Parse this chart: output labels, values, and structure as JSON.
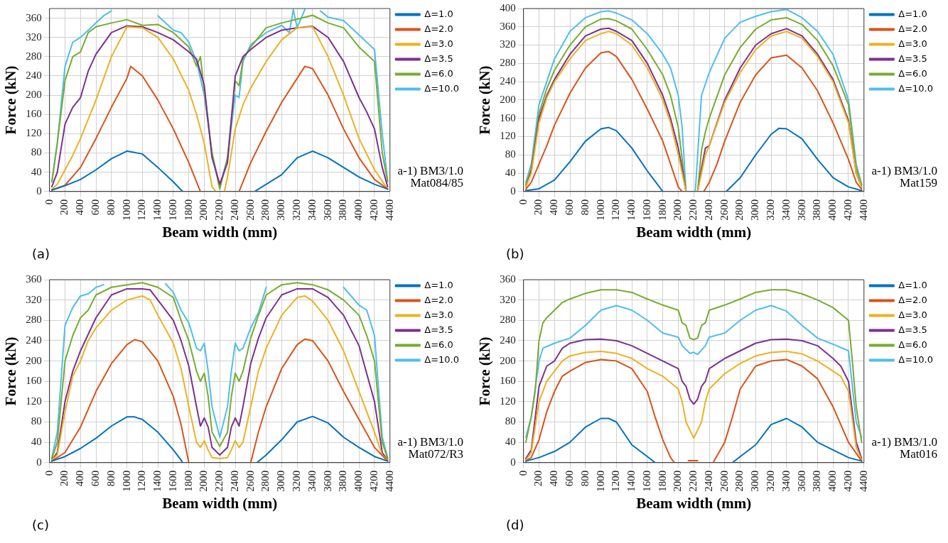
{
  "chart_data": [
    {
      "type": "line",
      "xlabel": "Beam width (mm)",
      "ylabel": "Force (kN)",
      "xlim": [
        0,
        4400
      ],
      "xticks": [
        0,
        200,
        400,
        600,
        800,
        1000,
        1200,
        1400,
        1600,
        1800,
        2000,
        2200,
        2400,
        2600,
        2800,
        3000,
        3200,
        3400,
        3600,
        3800,
        4000,
        4200,
        4400
      ],
      "ylim": [
        0,
        380
      ],
      "yticks": [
        0,
        40,
        80,
        120,
        160,
        200,
        240,
        280,
        320,
        360
      ],
      "grid": true,
      "legend": "top right",
      "marker": "none",
      "line_style": "solid",
      "annotations": [
        "(a)",
        "a-1) BM3/1.0",
        "Mat084/85"
      ],
      "series": [
        {
          "name": "Δ=1.0",
          "color": "#0072bd",
          "x": [
            30,
            200,
            400,
            600,
            800,
            1000,
            1200,
            1400,
            1600,
            1720,
            1800,
            2650,
            2800,
            3000,
            3200,
            3400,
            3600,
            3800,
            4000,
            4200,
            4370
          ],
          "values": [
            3,
            12,
            25,
            45,
            68,
            84,
            78,
            50,
            20,
            0,
            null,
            0,
            15,
            35,
            70,
            84,
            70,
            50,
            30,
            15,
            5
          ]
        },
        {
          "name": "Δ=2.0",
          "color": "#d95319",
          "x": [
            30,
            200,
            400,
            600,
            800,
            1000,
            1050,
            1200,
            1400,
            1600,
            1800,
            1950,
            2200,
            2450,
            2600,
            2800,
            3000,
            3200,
            3300,
            3400,
            3600,
            3800,
            4000,
            4200,
            4370
          ],
          "values": [
            3,
            13,
            50,
            110,
            175,
            235,
            260,
            240,
            190,
            130,
            60,
            0,
            null,
            0,
            60,
            125,
            185,
            235,
            260,
            255,
            200,
            130,
            70,
            25,
            5
          ]
        },
        {
          "name": "Δ=3.0",
          "color": "#edb120",
          "x": [
            30,
            100,
            200,
            300,
            400,
            600,
            800,
            1000,
            1200,
            1400,
            1600,
            1800,
            1900,
            2000,
            2100,
            2150,
            2200,
            2260,
            2300,
            2400,
            2500,
            2600,
            2800,
            3000,
            3200,
            3400,
            3600,
            3800,
            4000,
            4200,
            4370
          ],
          "values": [
            5,
            15,
            45,
            75,
            110,
            190,
            280,
            342,
            340,
            320,
            275,
            210,
            160,
            100,
            10,
            0,
            null,
            0,
            30,
            130,
            180,
            215,
            270,
            315,
            340,
            342,
            280,
            200,
            110,
            45,
            5
          ]
        },
        {
          "name": "Δ=3.5",
          "color": "#7e2f8e",
          "x": [
            30,
            100,
            200,
            300,
            400,
            500,
            600,
            800,
            1000,
            1200,
            1400,
            1600,
            1800,
            1900,
            2000,
            2100,
            2200,
            2300,
            2400,
            2500,
            2600,
            2800,
            3000,
            3200,
            3400,
            3600,
            3800,
            4000,
            4100,
            4200,
            4300,
            4370
          ],
          "values": [
            10,
            40,
            140,
            175,
            195,
            250,
            285,
            330,
            344,
            342,
            330,
            315,
            290,
            275,
            220,
            70,
            15,
            60,
            240,
            280,
            295,
            320,
            335,
            340,
            343,
            320,
            270,
            195,
            165,
            130,
            50,
            10
          ]
        },
        {
          "name": "Δ=6.0",
          "color": "#77ac30",
          "x": [
            30,
            100,
            200,
            300,
            400,
            500,
            600,
            800,
            1000,
            1200,
            1400,
            1600,
            1800,
            1900,
            1950,
            2000,
            2100,
            2200,
            2300,
            2400,
            2450,
            2500,
            2600,
            2800,
            3000,
            3200,
            3400,
            3600,
            3800,
            4000,
            4100,
            4200,
            4300,
            4370
          ],
          "values": [
            20,
            100,
            230,
            280,
            290,
            330,
            342,
            350,
            357,
            345,
            347,
            330,
            300,
            260,
            280,
            210,
            80,
            5,
            70,
            230,
            220,
            275,
            300,
            340,
            350,
            358,
            366,
            350,
            340,
            300,
            285,
            270,
            80,
            20
          ]
        },
        {
          "name": "Δ=10.0",
          "color": "#4dbeee",
          "x": [
            30,
            100,
            200,
            300,
            400,
            500,
            600,
            700,
            800,
            850,
            1000,
            1300,
            1400,
            1500,
            1600,
            1700,
            1800,
            1900,
            2000,
            2100,
            2200,
            2300,
            2400,
            2450,
            2500,
            2600,
            2800,
            3000,
            3100,
            3150,
            3200,
            3300,
            3400,
            3500,
            3600,
            3800,
            4000,
            4200,
            4300,
            4370
          ],
          "values": [
            20,
            100,
            260,
            310,
            320,
            335,
            350,
            365,
            375,
            null,
            null,
            null,
            365,
            350,
            335,
            330,
            310,
            270,
            200,
            80,
            10,
            70,
            200,
            195,
            270,
            305,
            330,
            345,
            330,
            378,
            340,
            378,
            null,
            375,
            362,
            355,
            325,
            295,
            120,
            22
          ]
        }
      ]
    },
    {
      "type": "line",
      "xlabel": "Beam width (mm)",
      "ylabel": "Force (kN)",
      "xlim": [
        0,
        4400
      ],
      "xticks": [
        0,
        200,
        400,
        600,
        800,
        1000,
        1200,
        1400,
        1600,
        1800,
        2000,
        2200,
        2400,
        2600,
        2800,
        3000,
        3200,
        3400,
        3600,
        3800,
        4000,
        4200,
        4400
      ],
      "ylim": [
        0,
        400
      ],
      "yticks": [
        0,
        40,
        80,
        120,
        160,
        200,
        240,
        280,
        320,
        360,
        400
      ],
      "grid": true,
      "legend": "top right",
      "marker": "none",
      "line_style": "solid",
      "annotations": [
        "(b)",
        "a-1) BM3/1.0",
        "Mat159"
      ],
      "series": [
        {
          "name": "Δ=1.0",
          "color": "#0072bd",
          "x": [
            30,
            200,
            400,
            600,
            800,
            1000,
            1100,
            1200,
            1400,
            1600,
            1800,
            2200,
            2620,
            2800,
            3000,
            3200,
            3300,
            3400,
            3600,
            3800,
            4000,
            4200,
            4370
          ],
          "values": [
            2,
            6,
            25,
            65,
            110,
            137,
            140,
            133,
            95,
            45,
            0,
            null,
            0,
            30,
            80,
            125,
            138,
            137,
            115,
            70,
            30,
            10,
            2
          ]
        },
        {
          "name": "Δ=2.0",
          "color": "#d95319",
          "x": [
            30,
            100,
            200,
            300,
            400,
            600,
            800,
            1000,
            1100,
            1200,
            1400,
            1600,
            1800,
            1900,
            2000,
            2050,
            2200,
            2330,
            2400,
            2500,
            2600,
            2800,
            3000,
            3200,
            3400,
            3600,
            3800,
            4000,
            4200,
            4300,
            4370
          ],
          "values": [
            5,
            20,
            60,
            100,
            145,
            215,
            270,
            303,
            306,
            295,
            245,
            180,
            110,
            60,
            10,
            0,
            null,
            0,
            20,
            60,
            110,
            195,
            255,
            292,
            298,
            270,
            220,
            150,
            70,
            20,
            5
          ]
        },
        {
          "name": "Δ=3.0",
          "color": "#edb120",
          "x": [
            30,
            100,
            200,
            300,
            400,
            600,
            800,
            1000,
            1100,
            1200,
            1400,
            1600,
            1800,
            1900,
            2000,
            2050,
            2100,
            2180,
            2250,
            2300,
            2350,
            2400,
            2600,
            2800,
            3000,
            3200,
            3400,
            3600,
            3800,
            4000,
            4200,
            4300,
            4370
          ],
          "values": [
            10,
            40,
            150,
            205,
            240,
            290,
            330,
            345,
            350,
            345,
            320,
            270,
            200,
            150,
            80,
            40,
            0,
            null,
            0,
            40,
            80,
            100,
            195,
            260,
            310,
            340,
            350,
            335,
            295,
            240,
            150,
            40,
            10
          ]
        },
        {
          "name": "Δ=3.5",
          "color": "#7e2f8e",
          "x": [
            30,
            100,
            200,
            300,
            400,
            600,
            800,
            1000,
            1100,
            1200,
            1400,
            1600,
            1800,
            1900,
            2000,
            2050,
            2100,
            2180,
            2250,
            2300,
            2350,
            2400,
            2600,
            2800,
            3000,
            3200,
            3400,
            3600,
            3800,
            4000,
            4200,
            4300,
            4370
          ],
          "values": [
            10,
            45,
            160,
            210,
            245,
            300,
            340,
            355,
            357,
            350,
            330,
            280,
            210,
            160,
            95,
            50,
            0,
            null,
            0,
            50,
            95,
            100,
            200,
            270,
            320,
            345,
            356,
            340,
            300,
            245,
            155,
            40,
            10
          ]
        },
        {
          "name": "Δ=6.0",
          "color": "#77ac30",
          "x": [
            30,
            100,
            200,
            300,
            400,
            600,
            800,
            1000,
            1100,
            1200,
            1400,
            1600,
            1800,
            1900,
            2000,
            2050,
            2100,
            2180,
            2250,
            2300,
            2350,
            2400,
            2600,
            2800,
            3000,
            3200,
            3400,
            3600,
            3800,
            4000,
            4200,
            4300,
            4370
          ],
          "values": [
            15,
            50,
            170,
            225,
            265,
            320,
            360,
            377,
            378,
            373,
            355,
            310,
            255,
            210,
            140,
            70,
            0,
            null,
            0,
            90,
            130,
            160,
            255,
            315,
            355,
            375,
            380,
            365,
            330,
            275,
            190,
            50,
            15
          ]
        },
        {
          "name": "Δ=10.0",
          "color": "#4dbeee",
          "x": [
            30,
            100,
            200,
            300,
            400,
            600,
            800,
            1000,
            1100,
            1200,
            1400,
            1600,
            1800,
            1900,
            2000,
            2050,
            2100,
            2160,
            2220,
            2300,
            2400,
            2600,
            2800,
            3000,
            3200,
            3400,
            3600,
            3800,
            4000,
            4200,
            4300,
            4370
          ],
          "values": [
            20,
            60,
            190,
            240,
            290,
            350,
            380,
            393,
            395,
            390,
            375,
            345,
            300,
            270,
            210,
            140,
            0,
            null,
            0,
            210,
            260,
            335,
            370,
            383,
            393,
            398,
            380,
            350,
            300,
            200,
            60,
            15
          ]
        }
      ]
    },
    {
      "type": "line",
      "xlabel": "Beam width (mm)",
      "ylabel": "Force (kN)",
      "xlim": [
        0,
        4400
      ],
      "xticks": [
        0,
        200,
        400,
        600,
        800,
        1000,
        1200,
        1400,
        1600,
        1800,
        2000,
        2200,
        2400,
        2600,
        2800,
        3000,
        3200,
        3400,
        3600,
        3800,
        4000,
        4200,
        4400
      ],
      "ylim": [
        0,
        360
      ],
      "yticks": [
        0,
        40,
        80,
        120,
        160,
        200,
        240,
        280,
        320,
        360
      ],
      "grid": true,
      "legend": "top right",
      "marker": "none",
      "line_style": "solid",
      "annotations": [
        "(c)",
        "a-1) BM3/1.0",
        "Mat072/R3"
      ],
      "series": [
        {
          "name": "Δ=1.0",
          "color": "#0072bd",
          "x": [
            30,
            200,
            400,
            600,
            800,
            1000,
            1100,
            1200,
            1400,
            1600,
            1700,
            1720,
            2200,
            2680,
            2800,
            3000,
            3200,
            3400,
            3600,
            3800,
            4000,
            4200,
            4370
          ],
          "values": [
            3,
            12,
            28,
            48,
            72,
            90,
            90,
            85,
            60,
            25,
            5,
            0,
            null,
            0,
            15,
            45,
            80,
            91,
            78,
            50,
            30,
            12,
            3
          ]
        },
        {
          "name": "Δ=2.0",
          "color": "#d95319",
          "x": [
            30,
            200,
            400,
            600,
            800,
            1000,
            1100,
            1200,
            1400,
            1600,
            1700,
            1800,
            2200,
            2600,
            2700,
            2800,
            3000,
            3200,
            3300,
            3400,
            3600,
            3800,
            4000,
            4200,
            4370
          ],
          "values": [
            3,
            20,
            70,
            140,
            195,
            232,
            242,
            238,
            200,
            130,
            75,
            0,
            null,
            0,
            60,
            110,
            185,
            232,
            243,
            240,
            200,
            140,
            85,
            30,
            3
          ]
        },
        {
          "name": "Δ=3.0",
          "color": "#edb120",
          "x": [
            30,
            100,
            200,
            300,
            400,
            500,
            600,
            800,
            1000,
            1200,
            1300,
            1400,
            1600,
            1700,
            1800,
            1900,
            1950,
            2000,
            2050,
            2100,
            2200,
            2300,
            2350,
            2400,
            2450,
            2500,
            2600,
            2700,
            2800,
            3000,
            3200,
            3300,
            3400,
            3600,
            3800,
            4000,
            4200,
            4300,
            4370
          ],
          "values": [
            5,
            15,
            100,
            170,
            200,
            240,
            265,
            300,
            320,
            328,
            320,
            290,
            235,
            185,
            110,
            40,
            30,
            43,
            25,
            10,
            8,
            10,
            25,
            43,
            30,
            40,
            110,
            180,
            225,
            290,
            325,
            328,
            318,
            280,
            220,
            140,
            60,
            15,
            5
          ]
        },
        {
          "name": "Δ=3.5",
          "color": "#7e2f8e",
          "x": [
            30,
            100,
            200,
            300,
            400,
            600,
            800,
            1000,
            1200,
            1300,
            1400,
            1600,
            1700,
            1800,
            1900,
            1950,
            2000,
            2050,
            2100,
            2200,
            2300,
            2350,
            2400,
            2450,
            2500,
            2600,
            2700,
            2800,
            3000,
            3200,
            3400,
            3600,
            3800,
            4000,
            4200,
            4300,
            4370
          ],
          "values": [
            5,
            20,
            120,
            180,
            220,
            285,
            330,
            342,
            342,
            340,
            320,
            280,
            240,
            190,
            110,
            72,
            88,
            70,
            30,
            15,
            30,
            70,
            88,
            72,
            110,
            195,
            245,
            285,
            330,
            342,
            342,
            325,
            290,
            230,
            120,
            20,
            5
          ]
        },
        {
          "name": "Δ=6.0",
          "color": "#77ac30",
          "x": [
            30,
            100,
            200,
            300,
            400,
            500,
            600,
            800,
            1000,
            1200,
            1400,
            1600,
            1700,
            1800,
            1900,
            1950,
            2000,
            2050,
            2100,
            2200,
            2300,
            2350,
            2400,
            2450,
            2500,
            2600,
            2700,
            2800,
            3000,
            3200,
            3400,
            3600,
            3800,
            4000,
            4100,
            4200,
            4300,
            4370
          ],
          "values": [
            8,
            40,
            200,
            250,
            285,
            300,
            330,
            345,
            350,
            354,
            345,
            325,
            280,
            240,
            180,
            160,
            176,
            130,
            60,
            32,
            60,
            130,
            176,
            160,
            180,
            245,
            290,
            330,
            350,
            354,
            350,
            340,
            320,
            290,
            250,
            200,
            40,
            8
          ]
        },
        {
          "name": "Δ=10.0",
          "color": "#4dbeee",
          "x": [
            30,
            100,
            200,
            300,
            400,
            500,
            600,
            700,
            800,
            1100,
            1400,
            1500,
            1600,
            1700,
            1800,
            1900,
            1950,
            2000,
            2050,
            2100,
            2200,
            2300,
            2350,
            2400,
            2450,
            2500,
            2600,
            2700,
            2800,
            2900,
            3300,
            3700,
            3800,
            4000,
            4100,
            4200,
            4300,
            4370
          ],
          "values": [
            10,
            60,
            270,
            305,
            328,
            332,
            345,
            350,
            null,
            null,
            null,
            352,
            335,
            300,
            275,
            225,
            220,
            235,
            180,
            110,
            50,
            110,
            180,
            235,
            220,
            225,
            265,
            295,
            345,
            null,
            null,
            null,
            345,
            310,
            300,
            250,
            50,
            10
          ]
        }
      ]
    },
    {
      "type": "line",
      "xlabel": "Beam width (mm)",
      "ylabel": "Force (kN)",
      "xlim": [
        0,
        4400
      ],
      "xticks": [
        0,
        200,
        400,
        600,
        800,
        1000,
        1200,
        1400,
        1600,
        1800,
        2000,
        2200,
        2400,
        2600,
        2800,
        3000,
        3200,
        3400,
        3600,
        3800,
        4000,
        4200,
        4400
      ],
      "ylim": [
        0,
        360
      ],
      "yticks": [
        0,
        40,
        80,
        120,
        160,
        200,
        240,
        280,
        320,
        360
      ],
      "grid": true,
      "legend": "top right",
      "marker": "none",
      "line_style": "solid",
      "annotations": [
        "(d)",
        "a-1) BM3/1.0",
        "Mat016"
      ],
      "series": [
        {
          "name": "Δ=1.0",
          "color": "#0072bd",
          "x": [
            30,
            200,
            400,
            600,
            800,
            1000,
            1100,
            1200,
            1400,
            1600,
            1700,
            2200,
            2700,
            2800,
            3000,
            3200,
            3400,
            3600,
            3800,
            4000,
            4200,
            4370
          ],
          "values": [
            3,
            10,
            22,
            40,
            70,
            87,
            87,
            80,
            35,
            12,
            0,
            null,
            0,
            12,
            35,
            75,
            87,
            70,
            40,
            25,
            10,
            3
          ]
        },
        {
          "name": "Δ=2.0",
          "color": "#d95319",
          "x": [
            30,
            100,
            200,
            300,
            400,
            500,
            600,
            800,
            1000,
            1200,
            1400,
            1600,
            1700,
            1800,
            1900,
            1950,
            2050,
            2130,
            2250,
            2350,
            2450,
            2600,
            2700,
            2800,
            3000,
            3200,
            3400,
            3600,
            3800,
            4000,
            4200,
            4370
          ],
          "values": [
            3,
            10,
            45,
            100,
            140,
            170,
            180,
            197,
            203,
            200,
            185,
            140,
            90,
            45,
            10,
            0,
            null,
            4,
            4,
            null,
            0,
            40,
            90,
            145,
            190,
            200,
            203,
            190,
            165,
            110,
            40,
            3
          ]
        },
        {
          "name": "Δ=3.0",
          "color": "#edb120",
          "x": [
            30,
            100,
            200,
            300,
            400,
            500,
            600,
            800,
            1000,
            1200,
            1400,
            1600,
            1800,
            2000,
            2050,
            2100,
            2200,
            2300,
            2350,
            2400,
            2600,
            2800,
            3000,
            3200,
            3400,
            3600,
            3800,
            4000,
            4100,
            4200,
            4300,
            4370
          ],
          "values": [
            5,
            20,
            120,
            160,
            180,
            200,
            210,
            217,
            219,
            215,
            205,
            185,
            170,
            145,
            120,
            80,
            48,
            80,
            120,
            145,
            175,
            195,
            210,
            217,
            219,
            214,
            200,
            180,
            170,
            140,
            30,
            5
          ]
        },
        {
          "name": "Δ=3.5",
          "color": "#7e2f8e",
          "x": [
            30,
            100,
            200,
            300,
            400,
            500,
            600,
            800,
            1000,
            1200,
            1400,
            1600,
            1800,
            2000,
            2050,
            2100,
            2150,
            2200,
            2250,
            2300,
            2350,
            2400,
            2600,
            2800,
            3000,
            3200,
            3400,
            3600,
            3800,
            4000,
            4100,
            4200,
            4300,
            4370
          ],
          "values": [
            8,
            25,
            150,
            190,
            200,
            225,
            235,
            242,
            243,
            240,
            230,
            215,
            200,
            185,
            160,
            150,
            125,
            115,
            125,
            150,
            160,
            185,
            205,
            220,
            235,
            242,
            243,
            240,
            230,
            205,
            190,
            160,
            40,
            8
          ]
        },
        {
          "name": "Δ=6.0",
          "color": "#77ac30",
          "x": [
            30,
            100,
            150,
            200,
            250,
            300,
            400,
            500,
            600,
            800,
            1000,
            1200,
            1400,
            1600,
            1800,
            2000,
            2050,
            2100,
            2150,
            2200,
            2250,
            2300,
            2350,
            2400,
            2600,
            2800,
            3000,
            3200,
            3400,
            3600,
            3800,
            4000,
            4200,
            4250,
            4300,
            4370
          ],
          "values": [
            40,
            90,
            140,
            240,
            275,
            285,
            300,
            315,
            322,
            333,
            340,
            340,
            335,
            322,
            310,
            300,
            275,
            270,
            245,
            242,
            245,
            270,
            275,
            300,
            310,
            322,
            335,
            340,
            340,
            332,
            320,
            305,
            280,
            200,
            110,
            40
          ]
        },
        {
          "name": "Δ=10.0",
          "color": "#4dbeee",
          "x": [
            30,
            100,
            200,
            250,
            400,
            600,
            800,
            1000,
            1200,
            1400,
            1600,
            1800,
            2000,
            2050,
            2150,
            2200,
            2250,
            2350,
            2400,
            2600,
            2800,
            3000,
            3200,
            3400,
            3600,
            3800,
            4000,
            4200,
            4250,
            4300,
            4370
          ],
          "values": [
            50,
            90,
            200,
            225,
            235,
            245,
            270,
            300,
            309,
            300,
            280,
            255,
            247,
            230,
            215,
            217,
            213,
            230,
            247,
            255,
            280,
            300,
            309,
            298,
            270,
            245,
            233,
            220,
            150,
            80,
            50
          ]
        }
      ]
    }
  ]
}
